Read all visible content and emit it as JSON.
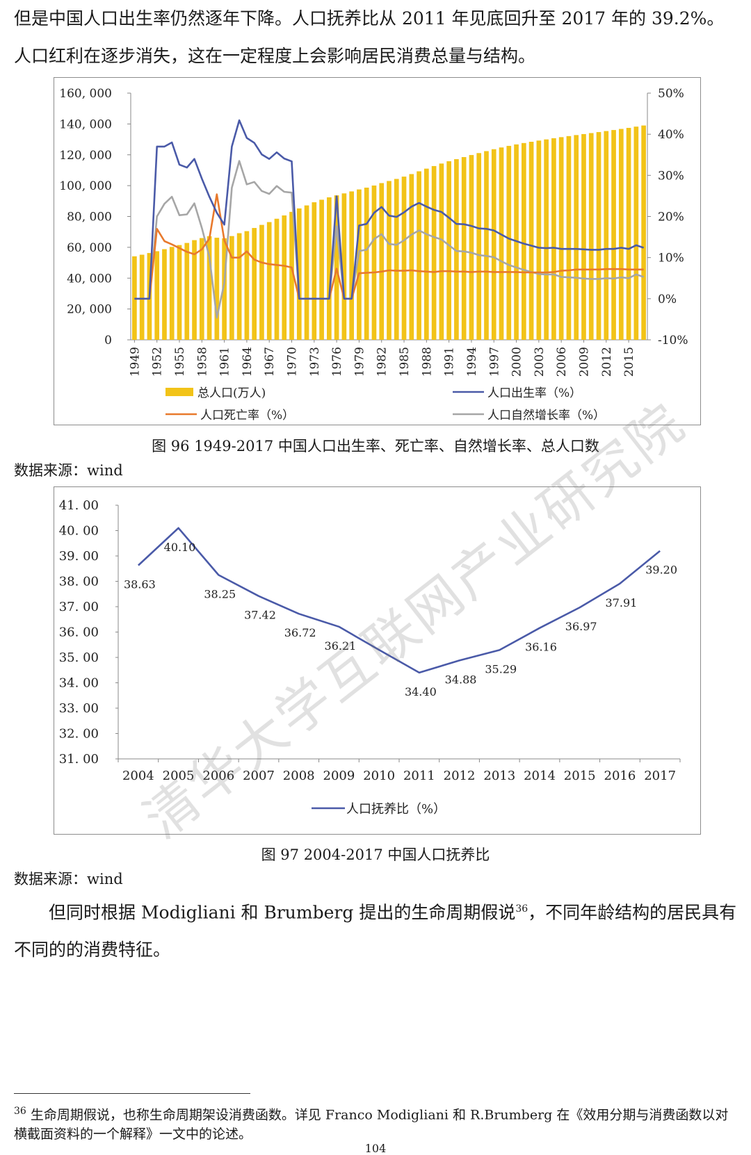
{
  "intro": {
    "text": "但是中国人口出生率仍然逐年下降。人口抚养比从 2011 年见底回升至 2017 年的 39.2%。人口红利在逐步消失，这在一定程度上会影响居民消费总量与结构。"
  },
  "figure96": {
    "caption": "图 96 1949-2017 中国人口出生率、死亡率、自然增长率、总人口数",
    "source": "数据来源：wind"
  },
  "figure97": {
    "caption": "图 97 2004-2017 中国人口抚养比",
    "source": "数据来源：wind"
  },
  "body2": {
    "text_before": "但同时根据 Modigliani 和 Brumberg 提出的生命周期假说",
    "ref": "36",
    "text_after": "，不同年龄结构的居民具有不同的的消费特征。"
  },
  "footnote": {
    "num": "36",
    "text": "生命周期假说，也称生命周期架设消费函数。详见 Franco Modigliani 和 R.Brumberg 在《效用分期与消费函数以对横截面资料的一个解释》一文中的论述。"
  },
  "page_number": "104",
  "watermark": "清华大学互联网产业研究院",
  "chart_data": [
    {
      "type": "bar+line",
      "title": "",
      "years": [
        1949,
        1950,
        1951,
        1952,
        1953,
        1954,
        1955,
        1956,
        1957,
        1958,
        1959,
        1960,
        1961,
        1962,
        1963,
        1964,
        1965,
        1966,
        1967,
        1968,
        1969,
        1970,
        1971,
        1972,
        1973,
        1974,
        1975,
        1976,
        1977,
        1978,
        1979,
        1980,
        1981,
        1982,
        1983,
        1984,
        1985,
        1986,
        1987,
        1988,
        1989,
        1990,
        1991,
        1992,
        1993,
        1994,
        1995,
        1996,
        1997,
        1998,
        1999,
        2000,
        2001,
        2002,
        2003,
        2004,
        2005,
        2006,
        2007,
        2008,
        2009,
        2010,
        2011,
        2012,
        2013,
        2014,
        2015,
        2016,
        2017
      ],
      "x_tick_labels": [
        "1949",
        "1952",
        "1955",
        "1958",
        "1961",
        "1964",
        "1967",
        "1970",
        "1973",
        "1976",
        "1979",
        "1982",
        "1985",
        "1988",
        "1991",
        "1994",
        "1997",
        "2000",
        "2003",
        "2006",
        "2009",
        "2012",
        "2015"
      ],
      "left_axis": {
        "ticks": [
          "0",
          "20, 000",
          "40, 000",
          "60, 000",
          "80, 000",
          "100, 000",
          "120, 000",
          "140, 000",
          "160, 000"
        ],
        "range": [
          0,
          160000
        ]
      },
      "right_axis": {
        "ticks": [
          "-10%",
          "0%",
          "10%",
          "20%",
          "30%",
          "40%",
          "50%"
        ],
        "range": [
          -10,
          50
        ]
      },
      "series": [
        {
          "name": "总人口(万人)",
          "axis": "left",
          "kind": "bar",
          "color": "#f2c318",
          "values": [
            54167,
            55196,
            56300,
            57482,
            58796,
            60266,
            61465,
            62828,
            64653,
            65994,
            67207,
            66207,
            65859,
            67296,
            69172,
            70499,
            72538,
            74542,
            76368,
            78534,
            80671,
            82992,
            85229,
            87177,
            89211,
            90859,
            92420,
            93717,
            94974,
            96259,
            97542,
            98705,
            100072,
            101654,
            103008,
            104357,
            105851,
            107507,
            109300,
            111026,
            112704,
            114333,
            115823,
            117171,
            118517,
            119850,
            121121,
            122389,
            123626,
            124761,
            125786,
            126743,
            127627,
            128453,
            129227,
            129988,
            130756,
            131448,
            132129,
            132802,
            133450,
            134091,
            134735,
            135404,
            136072,
            136782,
            137462,
            138271,
            139008
          ]
        },
        {
          "name": "人口出生率（%）",
          "axis": "right",
          "kind": "line",
          "color": "#4a5aa8",
          "values": [
            0,
            0,
            0,
            37,
            37,
            38,
            32.6,
            31.9,
            34,
            29.2,
            24.8,
            20.9,
            18,
            37,
            43.4,
            39.1,
            37.9,
            35.1,
            34,
            35.6,
            34.1,
            33.4,
            0,
            0,
            0,
            0,
            0,
            24.9,
            0,
            0,
            17.8,
            18.2,
            20.9,
            22.3,
            20.2,
            19.9,
            21,
            22.4,
            23.3,
            22.4,
            21.6,
            21.1,
            19.7,
            18.2,
            18.1,
            17.7,
            17.1,
            17,
            16.6,
            15.6,
            14.6,
            14,
            13.4,
            12.9,
            12.4,
            12.3,
            12.4,
            12.1,
            12.1,
            12.1,
            12,
            11.9,
            11.9,
            12.1,
            12.1,
            12.4,
            12.1,
            13,
            12.4
          ]
        },
        {
          "name": "人口死亡率（%）",
          "axis": "right",
          "kind": "line",
          "color": "#e8792c",
          "values": [
            0,
            0,
            0,
            17,
            14,
            13.2,
            12.3,
            11.4,
            10.8,
            12,
            14.6,
            25.4,
            14.2,
            10,
            10,
            11.5,
            9.5,
            8.8,
            8.4,
            8.2,
            8,
            7.6,
            0,
            0,
            0,
            0,
            0,
            7.3,
            0,
            0,
            6.2,
            6.3,
            6.4,
            6.6,
            6.9,
            6.8,
            6.8,
            6.9,
            6.7,
            6.6,
            6.5,
            6.7,
            6.7,
            6.6,
            6.6,
            6.5,
            6.6,
            6.6,
            6.5,
            6.5,
            6.5,
            6.5,
            6.4,
            6.4,
            6.4,
            6.4,
            6.5,
            6.8,
            6.9,
            7.1,
            7.1,
            7.1,
            7.1,
            7.2,
            7.2,
            7.2,
            7.1,
            7.1,
            7.1
          ]
        },
        {
          "name": "人口自然增长率（%）",
          "axis": "right",
          "kind": "line",
          "color": "#a6a6a6",
          "values": [
            0,
            0,
            0,
            20,
            23.1,
            24.8,
            20.3,
            20.5,
            23.2,
            17.2,
            10.2,
            -4.6,
            3.8,
            27,
            33.5,
            27.8,
            28.4,
            26.2,
            25.5,
            27.4,
            26,
            25.8,
            0,
            0,
            0,
            0,
            0,
            17.6,
            0,
            0,
            11.6,
            11.9,
            14.5,
            15.7,
            13.3,
            13.1,
            14.2,
            15.6,
            16.6,
            15.7,
            15,
            14.4,
            13,
            11.6,
            11.5,
            11.2,
            10.6,
            10.4,
            10.1,
            9.1,
            8.2,
            7.6,
            7,
            6.5,
            6,
            5.9,
            5.9,
            5.3,
            5.2,
            5.1,
            4.9,
            4.8,
            4.8,
            5,
            4.9,
            5.2,
            5,
            5.9,
            5.3
          ]
        }
      ],
      "legend_position": "bottom",
      "grid": false
    },
    {
      "type": "line",
      "title": "",
      "x": [
        "2004",
        "2005",
        "2006",
        "2007",
        "2008",
        "2009",
        "2010",
        "2011",
        "2012",
        "2013",
        "2014",
        "2015",
        "2016",
        "2017"
      ],
      "y_ticks": [
        "31. 00",
        "32. 00",
        "33. 00",
        "34. 00",
        "35. 00",
        "36. 00",
        "37. 00",
        "38. 00",
        "39. 00",
        "40. 00",
        "41. 00"
      ],
      "ylim": [
        31,
        41
      ],
      "series": [
        {
          "name": "人口抚养比（%）",
          "color": "#4a5aa8",
          "values": [
            38.63,
            40.1,
            38.25,
            37.42,
            36.72,
            36.21,
            35.3,
            34.4,
            34.88,
            35.29,
            36.16,
            36.97,
            37.91,
            39.2
          ],
          "data_labels": [
            "38.63",
            "40.10",
            "38.25",
            "37.42",
            "36.72",
            "36.21",
            "",
            "34.40",
            "34.88",
            "35.29",
            "36.16",
            "36.97",
            "37.91",
            "39.20"
          ]
        }
      ],
      "legend_position": "bottom",
      "grid": false
    }
  ]
}
